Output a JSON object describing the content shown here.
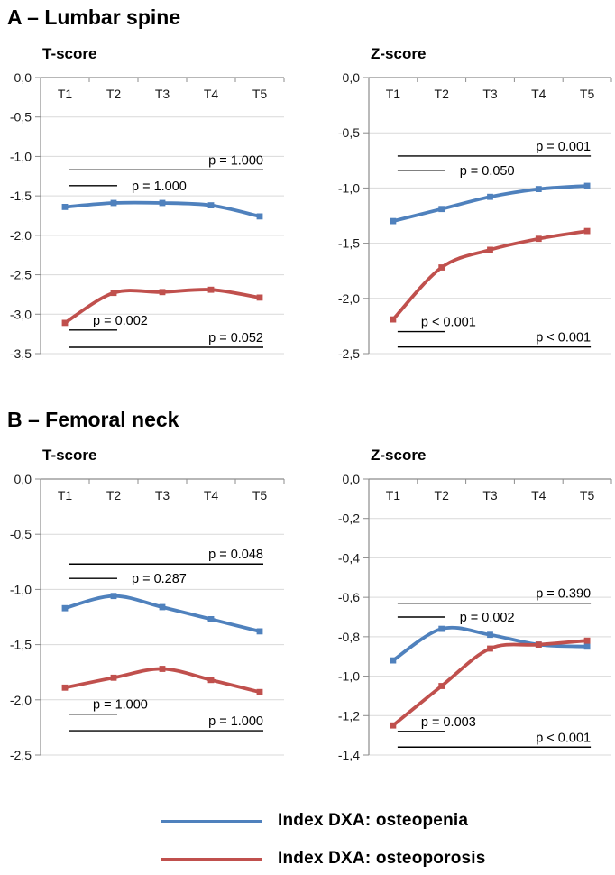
{
  "sections": {
    "a": {
      "title": "A – Lumbar spine"
    },
    "b": {
      "title": "B – Femoral neck"
    }
  },
  "legend": {
    "items": [
      {
        "key": "osteopenia",
        "label": "Index DXA: osteopenia",
        "color": "#4F81BD"
      },
      {
        "key": "osteoporosis",
        "label": "Index DXA: osteoporosis",
        "color": "#C0504D"
      }
    ]
  },
  "chart_data": [
    {
      "id": "a-tscore",
      "section": "A – Lumbar spine",
      "type": "line",
      "title": "T-score",
      "categories": [
        "T1",
        "T2",
        "T3",
        "T4",
        "T5"
      ],
      "ylim": [
        0,
        -3.5
      ],
      "ytick_step": -0.5,
      "ytick_labels": [
        "0,0",
        "-0,5",
        "-1,0",
        "-1,5",
        "-2,0",
        "-2,5",
        "-3,0",
        "-3,5"
      ],
      "grid": true,
      "legend_position": "none",
      "series": [
        {
          "key": "osteopenia",
          "name": "Index DXA: osteopenia",
          "color": "#4F81BD",
          "values": [
            -1.64,
            -1.59,
            -1.59,
            -1.62,
            -1.76
          ]
        },
        {
          "key": "osteoporosis",
          "name": "Index DXA: osteoporosis",
          "color": "#C0504D",
          "values": [
            -3.11,
            -2.73,
            -2.72,
            -2.69,
            -2.79
          ]
        }
      ],
      "annotations": [
        {
          "from": "T1",
          "to": "T5",
          "y": -1.17,
          "label": "p = 1.000",
          "label_pos": "above-right"
        },
        {
          "from": "T1",
          "to": "T2",
          "y": -1.37,
          "label": "p = 1.000",
          "label_pos": "right"
        },
        {
          "from": "T1",
          "to": "T2",
          "y": -3.2,
          "label": "p = 0.002",
          "label_pos": "above-mid"
        },
        {
          "from": "T1",
          "to": "T5",
          "y": -3.42,
          "label": "p = 0.052",
          "label_pos": "above-right"
        }
      ]
    },
    {
      "id": "a-zscore",
      "section": "A – Lumbar spine",
      "type": "line",
      "title": "Z-score",
      "categories": [
        "T1",
        "T2",
        "T3",
        "T4",
        "T5"
      ],
      "ylim": [
        0,
        -2.5
      ],
      "ytick_step": -0.5,
      "ytick_labels": [
        "0,0",
        "-0,5",
        "-1,0",
        "-1,5",
        "-2,0",
        "-2,5"
      ],
      "grid": true,
      "legend_position": "none",
      "series": [
        {
          "key": "osteopenia",
          "name": "Index DXA: osteopenia",
          "color": "#4F81BD",
          "values": [
            -1.3,
            -1.19,
            -1.08,
            -1.01,
            -0.98
          ]
        },
        {
          "key": "osteoporosis",
          "name": "Index DXA: osteoporosis",
          "color": "#C0504D",
          "values": [
            -2.19,
            -1.72,
            -1.56,
            -1.46,
            -1.39
          ]
        }
      ],
      "annotations": [
        {
          "from": "T1",
          "to": "T5",
          "y": -0.71,
          "label": "p = 0.001",
          "label_pos": "above-right"
        },
        {
          "from": "T1",
          "to": "T2",
          "y": -0.84,
          "label": "p = 0.050",
          "label_pos": "right"
        },
        {
          "from": "T1",
          "to": "T2",
          "y": -2.3,
          "label": "p < 0.001",
          "label_pos": "above-mid"
        },
        {
          "from": "T1",
          "to": "T5",
          "y": -2.44,
          "label": "p < 0.001",
          "label_pos": "above-right"
        }
      ]
    },
    {
      "id": "b-tscore",
      "section": "B – Femoral neck",
      "type": "line",
      "title": "T-score",
      "categories": [
        "T1",
        "T2",
        "T3",
        "T4",
        "T5"
      ],
      "ylim": [
        0,
        -2.5
      ],
      "ytick_step": -0.5,
      "ytick_labels": [
        "0,0",
        "-0,5",
        "-1,0",
        "-1,5",
        "-2,0",
        "-2,5"
      ],
      "grid": true,
      "legend_position": "none",
      "series": [
        {
          "key": "osteopenia",
          "name": "Index DXA: osteopenia",
          "color": "#4F81BD",
          "values": [
            -1.17,
            -1.06,
            -1.16,
            -1.27,
            -1.38
          ]
        },
        {
          "key": "osteoporosis",
          "name": "Index DXA: osteoporosis",
          "color": "#C0504D",
          "values": [
            -1.89,
            -1.8,
            -1.72,
            -1.82,
            -1.93
          ]
        }
      ],
      "annotations": [
        {
          "from": "T1",
          "to": "T5",
          "y": -0.77,
          "label": "p = 0.048",
          "label_pos": "above-right"
        },
        {
          "from": "T1",
          "to": "T2",
          "y": -0.9,
          "label": "p = 0.287",
          "label_pos": "right"
        },
        {
          "from": "T1",
          "to": "T2",
          "y": -2.13,
          "label": "p = 1.000",
          "label_pos": "above-mid"
        },
        {
          "from": "T1",
          "to": "T5",
          "y": -2.28,
          "label": "p = 1.000",
          "label_pos": "above-right"
        }
      ]
    },
    {
      "id": "b-zscore",
      "section": "B – Femoral neck",
      "type": "line",
      "title": "Z-score",
      "categories": [
        "T1",
        "T2",
        "T3",
        "T4",
        "T5"
      ],
      "ylim": [
        0,
        -1.4
      ],
      "ytick_step": -0.2,
      "ytick_labels": [
        "0,0",
        "-0,2",
        "-0,4",
        "-0,6",
        "-0,8",
        "-1,0",
        "-1,2",
        "-1,4"
      ],
      "grid": true,
      "legend_position": "none",
      "series": [
        {
          "key": "osteopenia",
          "name": "Index DXA: osteopenia",
          "color": "#4F81BD",
          "values": [
            -0.92,
            -0.76,
            -0.79,
            -0.84,
            -0.85
          ]
        },
        {
          "key": "osteoporosis",
          "name": "Index DXA: osteoporosis",
          "color": "#C0504D",
          "values": [
            -1.25,
            -1.05,
            -0.86,
            -0.84,
            -0.82
          ]
        }
      ],
      "annotations": [
        {
          "from": "T1",
          "to": "T5",
          "y": -0.63,
          "label": "p = 0.390",
          "label_pos": "above-right"
        },
        {
          "from": "T1",
          "to": "T2",
          "y": -0.7,
          "label": "p = 0.002",
          "label_pos": "right"
        },
        {
          "from": "T1",
          "to": "T2",
          "y": -1.28,
          "label": "p = 0.003",
          "label_pos": "above-mid"
        },
        {
          "from": "T1",
          "to": "T5",
          "y": -1.36,
          "label": "p < 0.001",
          "label_pos": "above-right"
        }
      ]
    }
  ]
}
